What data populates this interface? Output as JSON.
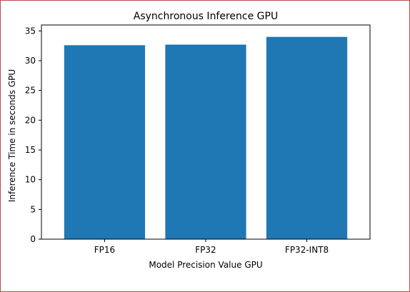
{
  "colors": {
    "bar": "#1f77b4",
    "frame_border": "#b94a48"
  },
  "chart_data": {
    "type": "bar",
    "title": "Asynchronous Inference GPU",
    "xlabel": "Model Precision Value GPU",
    "ylabel": "Inference Time in seconds GPU",
    "categories": [
      "FP16",
      "FP32",
      "FP32-INT8"
    ],
    "values": [
      32.6,
      32.7,
      34.0
    ],
    "ylim": [
      0,
      36
    ],
    "yticks": [
      0,
      5,
      10,
      15,
      20,
      25,
      30,
      35
    ],
    "grid": false,
    "legend": "none"
  }
}
